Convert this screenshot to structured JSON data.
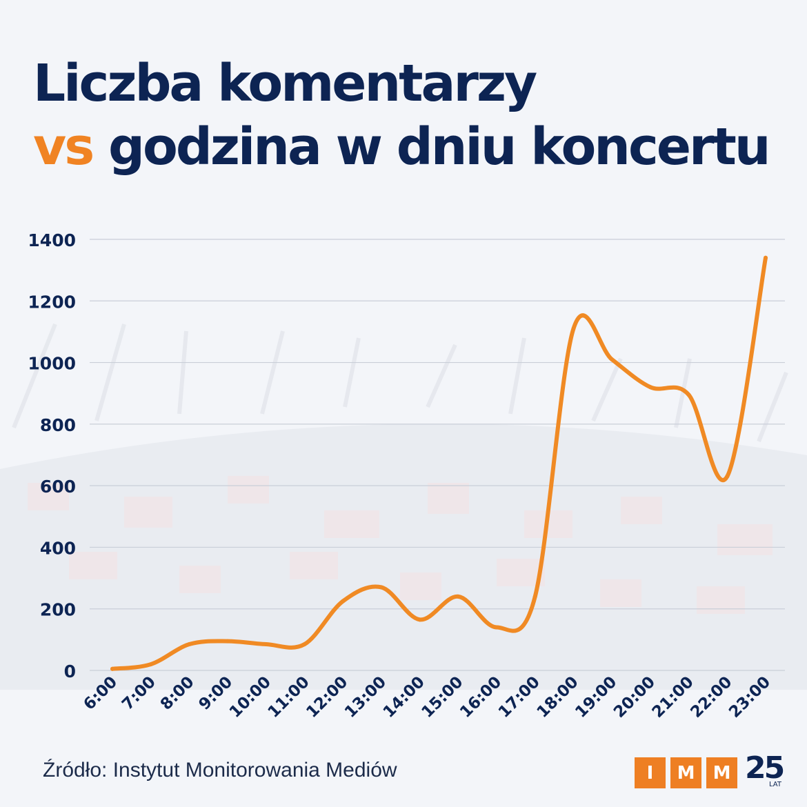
{
  "title": {
    "line1": "Liczba komentarzy",
    "vs": "vs",
    "line2_rest": " godzina w dniu koncertu"
  },
  "chart_data": {
    "type": "line",
    "x": [
      "6:00",
      "7:00",
      "8:00",
      "9:00",
      "10:00",
      "11:00",
      "12:00",
      "13:00",
      "14:00",
      "15:00",
      "16:00",
      "17:00",
      "18:00",
      "19:00",
      "20:00",
      "21:00",
      "22:00",
      "23:00"
    ],
    "series": [
      {
        "values": [
          5,
          20,
          85,
          95,
          85,
          85,
          225,
          270,
          165,
          240,
          140,
          240,
          1110,
          1010,
          920,
          895,
          630,
          1340
        ]
      }
    ],
    "ylim": [
      0,
      1400
    ],
    "yticks": [
      0,
      200,
      400,
      600,
      800,
      1000,
      1200,
      1400
    ],
    "grid": true,
    "line_color": "#f08a24"
  },
  "source": "Źródło: Instytut Monitorowania Mediów",
  "logo": {
    "letters": [
      "I",
      "M",
      "M"
    ],
    "years": "25",
    "lat": "LAT"
  },
  "colors": {
    "title": "#0d2453",
    "accent": "#f08323",
    "grid": "#c9ced8",
    "axis_text": "#0d2453"
  }
}
